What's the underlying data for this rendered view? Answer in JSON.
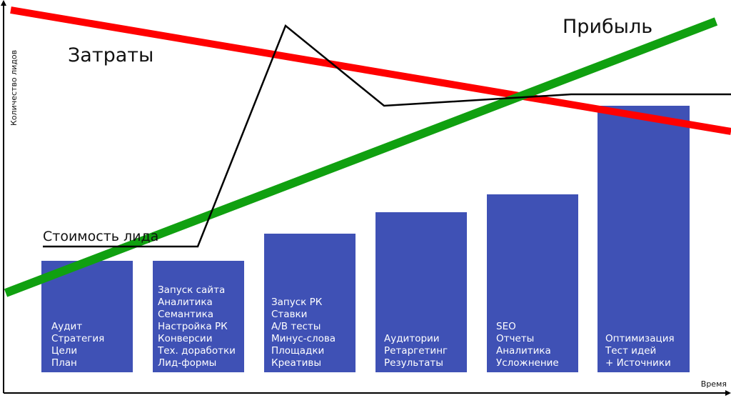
{
  "axes": {
    "y_label": "Количество лидов",
    "x_label": "Время"
  },
  "labels": {
    "costs": "Затраты",
    "profit": "Прибыль",
    "lead_cost": "Стоимость лида"
  },
  "stages": [
    {
      "lines": [
        "Аудит",
        "Стратегия",
        "Цели",
        "План"
      ]
    },
    {
      "lines": [
        "Запуск сайта",
        "Аналитика",
        "Семантика",
        "Настройка РК",
        "Конверсии",
        "Тех. доработки",
        "Лид-формы"
      ]
    },
    {
      "lines": [
        "Запуск РК",
        "Ставки",
        "A/B тесты",
        "Минус-слова",
        "Площадки",
        "Креативы"
      ]
    },
    {
      "lines": [
        "Аудитории",
        "Ретаргетинг",
        "Результаты"
      ]
    },
    {
      "lines": [
        "SEO",
        "Отчеты",
        "Аналитика",
        "Усложнение"
      ]
    },
    {
      "lines": [
        "Оптимизация",
        "Тест идей",
        "+ Источники"
      ]
    }
  ]
}
